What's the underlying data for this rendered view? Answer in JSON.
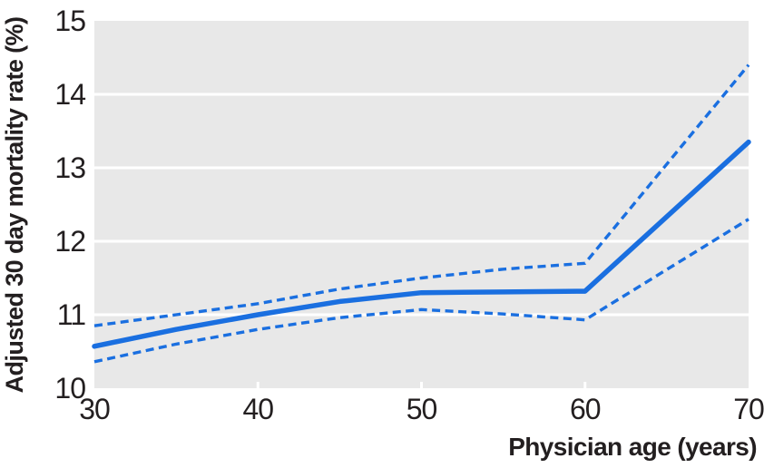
{
  "chart_data": {
    "type": "line",
    "title": "",
    "xlabel": "Physician age (years)",
    "ylabel": "Adjusted 30 day mortality rate (%)",
    "xlim": [
      30,
      70
    ],
    "ylim": [
      10,
      15
    ],
    "x_ticks": [
      30,
      40,
      50,
      60,
      70
    ],
    "x_minor_tick_marks": [
      40,
      50,
      60
    ],
    "y_ticks": [
      10,
      11,
      12,
      13,
      14,
      15
    ],
    "y_gridlines": [
      11,
      12,
      13,
      14
    ],
    "grid": true,
    "legend_position": "none",
    "series": [
      {
        "name": "ci-upper",
        "style": "dashed",
        "x": [
          30,
          35,
          40,
          45,
          50,
          55,
          60,
          70
        ],
        "y": [
          10.85,
          11.0,
          11.15,
          11.35,
          11.5,
          11.62,
          11.7,
          14.4
        ]
      },
      {
        "name": "ci-lower",
        "style": "dashed",
        "x": [
          30,
          35,
          40,
          45,
          50,
          55,
          60,
          70
        ],
        "y": [
          10.36,
          10.6,
          10.8,
          10.96,
          11.07,
          11.01,
          10.93,
          12.3
        ]
      },
      {
        "name": "adjusted-mortality",
        "style": "solid",
        "x": [
          30,
          35,
          40,
          45,
          50,
          55,
          60,
          70
        ],
        "y": [
          10.57,
          10.8,
          11.0,
          11.18,
          11.3,
          11.31,
          11.32,
          13.35
        ]
      }
    ],
    "colors": {
      "line": "#1a6fe0",
      "plot_bg": "#e8e8e8",
      "grid": "#ffffff",
      "text": "#231f20"
    }
  }
}
